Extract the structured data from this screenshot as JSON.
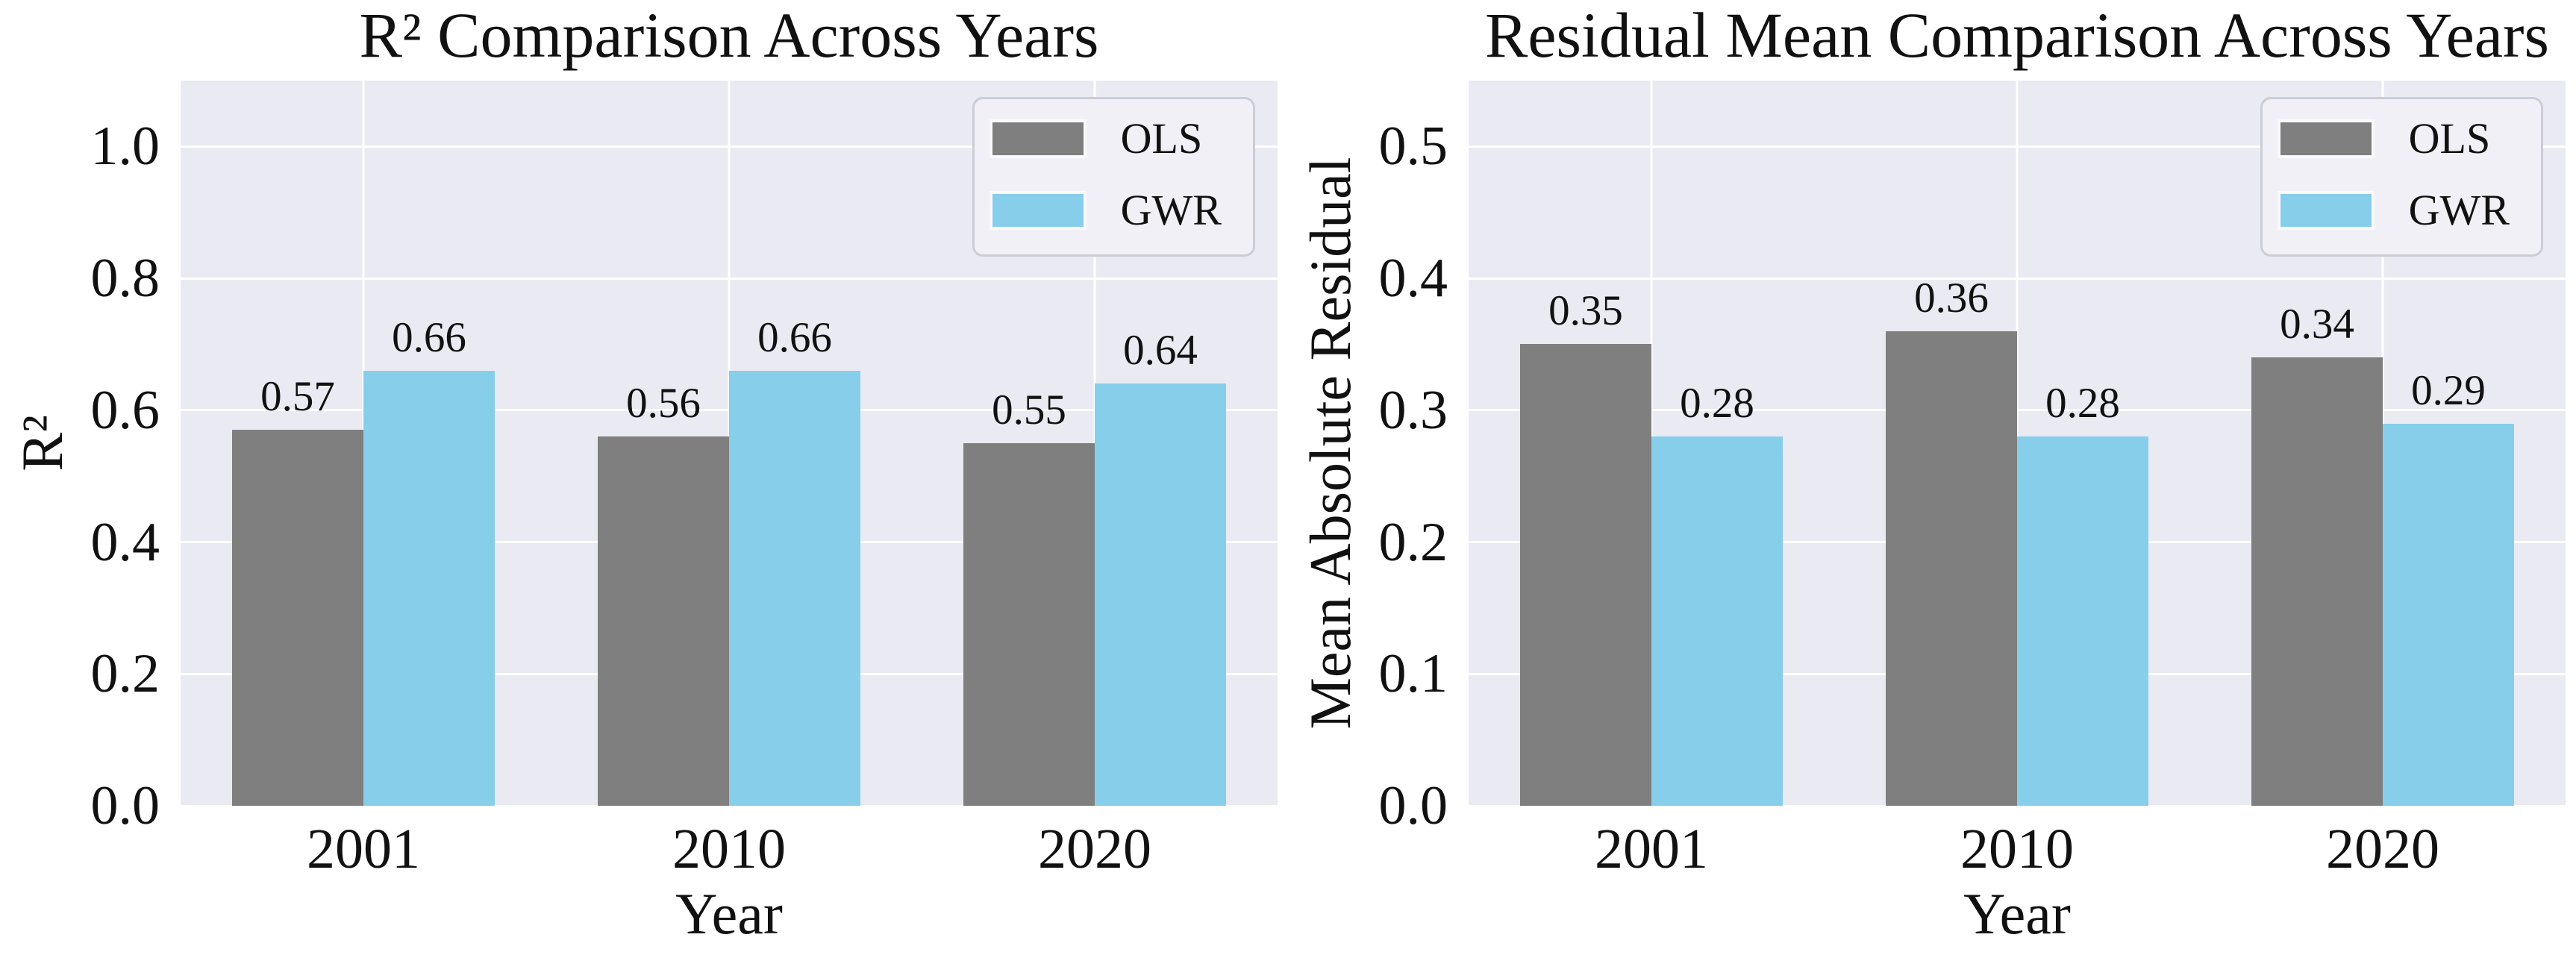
{
  "figure": {
    "background": "#ffffff",
    "axes_background": "#eaeaf2",
    "grid_color": "#ffffff",
    "text_color": "#111111",
    "legend_background": "#f0f0f6",
    "legend_border": "#ccccd6"
  },
  "chart_data": [
    {
      "type": "bar",
      "title": "R² Comparison Across Years",
      "xlabel": "Year",
      "ylabel": "R²",
      "categories": [
        "2001",
        "2010",
        "2020"
      ],
      "series": [
        {
          "name": "OLS",
          "color": "#7f7f7f",
          "values": [
            0.57,
            0.56,
            0.55
          ],
          "labels": [
            "0.57",
            "0.56",
            "0.55"
          ]
        },
        {
          "name": "GWR",
          "color": "#87ceeb",
          "values": [
            0.66,
            0.66,
            0.64
          ],
          "labels": [
            "0.66",
            "0.66",
            "0.64"
          ]
        }
      ],
      "ylim": [
        0,
        1.1
      ],
      "yticks": [
        0.0,
        0.2,
        0.4,
        0.6,
        0.8,
        1.0
      ],
      "ytick_labels": [
        "0.0",
        "0.2",
        "0.4",
        "0.6",
        "0.8",
        "1.0"
      ],
      "grid": true,
      "legend_position": "upper right"
    },
    {
      "type": "bar",
      "title": "Residual Mean Comparison Across Years",
      "xlabel": "Year",
      "ylabel": "Mean Absolute Residual",
      "categories": [
        "2001",
        "2010",
        "2020"
      ],
      "series": [
        {
          "name": "OLS",
          "color": "#7f7f7f",
          "values": [
            0.35,
            0.36,
            0.34
          ],
          "labels": [
            "0.35",
            "0.36",
            "0.34"
          ]
        },
        {
          "name": "GWR",
          "color": "#87ceeb",
          "values": [
            0.28,
            0.28,
            0.29
          ],
          "labels": [
            "0.28",
            "0.28",
            "0.29"
          ]
        }
      ],
      "ylim": [
        0,
        0.55
      ],
      "yticks": [
        0.0,
        0.1,
        0.2,
        0.3,
        0.4,
        0.5
      ],
      "ytick_labels": [
        "0.0",
        "0.1",
        "0.2",
        "0.3",
        "0.4",
        "0.5"
      ],
      "grid": true,
      "legend_position": "upper right"
    }
  ]
}
